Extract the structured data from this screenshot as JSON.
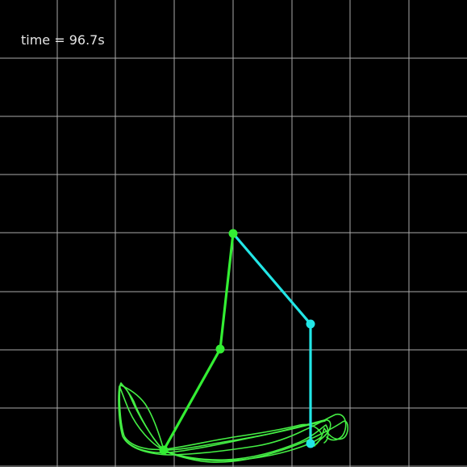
{
  "sim": {
    "time_label": "time = 96.7s"
  },
  "colors": {
    "background": "#000000",
    "grid": "#c8c8c8",
    "pendulum_a": "#33ee33",
    "pendulum_b": "#22e6e6",
    "trail": "#44ee44"
  }
}
